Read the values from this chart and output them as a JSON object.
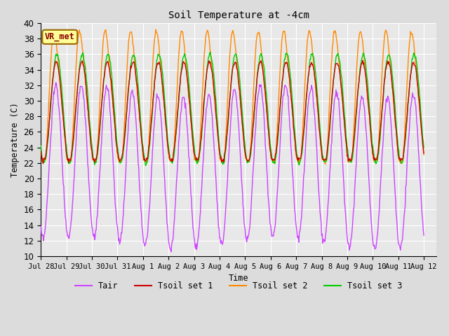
{
  "title": "Soil Temperature at -4cm",
  "xlabel": "Time",
  "ylabel": "Temperature (C)",
  "ylim": [
    10,
    40
  ],
  "background_color": "#dcdcdc",
  "plot_bg_color": "#e8e8e8",
  "grid_color": "white",
  "colors": {
    "Tair": "#cc44ff",
    "Tsoil1": "#cc0000",
    "Tsoil2": "#ff8800",
    "Tsoil3": "#00cc00"
  },
  "legend_labels": [
    "Tair",
    "Tsoil set 1",
    "Tsoil set 2",
    "Tsoil set 3"
  ],
  "annotation_text": "VR_met",
  "annotation_box_color": "#ffff99",
  "annotation_border_color": "#996600",
  "tick_labels": [
    "Jul 28",
    "Jul 29",
    "Jul 30",
    "Jul 31",
    "Aug 1",
    "Aug 2",
    "Aug 3",
    "Aug 4",
    "Aug 5",
    "Aug 6",
    "Aug 7",
    "Aug 8",
    "Aug 9",
    "Aug 10",
    "Aug 11",
    "Aug 12"
  ],
  "tick_positions": [
    0,
    1,
    2,
    3,
    4,
    5,
    6,
    7,
    8,
    9,
    10,
    11,
    12,
    13,
    14,
    15
  ],
  "figsize": [
    6.4,
    4.8
  ],
  "dpi": 100
}
